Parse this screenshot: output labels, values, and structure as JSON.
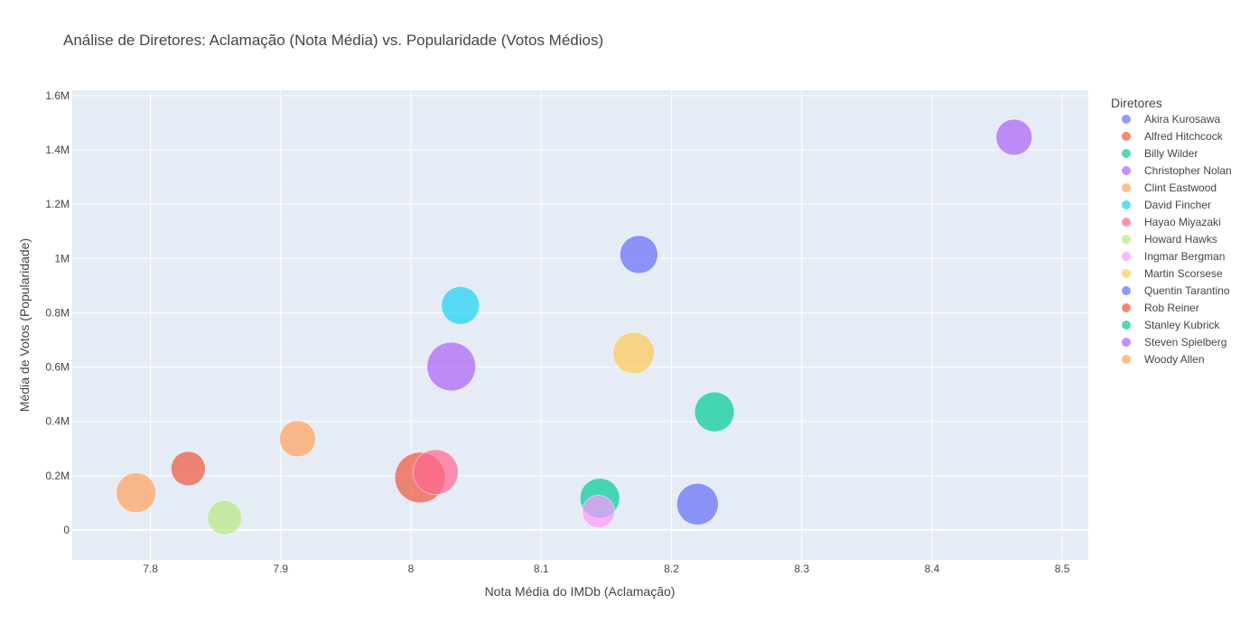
{
  "chart_data": {
    "type": "scatter",
    "title": "Análise de Diretores: Aclamação (Nota Média) vs. Popularidade (Votos Médios)",
    "xlabel": "Nota Média do IMDb (Aclamação)",
    "ylabel": "Média de Votos (Popularidade)",
    "xlim": [
      7.74,
      8.52
    ],
    "ylim": [
      -110000,
      1620000
    ],
    "x_ticks": [
      7.8,
      7.9,
      8,
      8.1,
      8.2,
      8.3,
      8.4,
      8.5
    ],
    "x_tick_labels": [
      "7.8",
      "7.9",
      "8",
      "8.1",
      "8.2",
      "8.3",
      "8.4",
      "8.5"
    ],
    "y_ticks": [
      0,
      200000,
      400000,
      600000,
      800000,
      1000000,
      1200000,
      1400000,
      1600000
    ],
    "y_tick_labels": [
      "0",
      "0.2M",
      "0.4M",
      "0.6M",
      "0.8M",
      "1M",
      "1.2M",
      "1.4M",
      "1.6M"
    ],
    "legend_title": "Diretores",
    "legend_position": "right",
    "grid": true,
    "series": [
      {
        "name": "Akira Kurosawa",
        "color": "#636efa",
        "x": 8.22,
        "y": 95000,
        "size": 23
      },
      {
        "name": "Alfred Hitchcock",
        "color": "#EF553B",
        "x": 8.007,
        "y": 193000,
        "size": 28
      },
      {
        "name": "Billy Wilder",
        "color": "#00cc96",
        "x": 8.145,
        "y": 117000,
        "size": 22
      },
      {
        "name": "Christopher Nolan",
        "color": "#ab63fa",
        "x": 8.463,
        "y": 1447000,
        "size": 20
      },
      {
        "name": "Clint Eastwood",
        "color": "#FFA15A",
        "x": 7.913,
        "y": 336000,
        "size": 20
      },
      {
        "name": "David Fincher",
        "color": "#19d3f3",
        "x": 8.038,
        "y": 827000,
        "size": 21
      },
      {
        "name": "Hayao Miyazaki",
        "color": "#FF6692",
        "x": 8.019,
        "y": 213000,
        "size": 25
      },
      {
        "name": "Howard Hawks",
        "color": "#B6E880",
        "x": 7.857,
        "y": 45000,
        "size": 19
      },
      {
        "name": "Ingmar Bergman",
        "color": "#FF97FF",
        "x": 8.144,
        "y": 68000,
        "size": 18
      },
      {
        "name": "Martin Scorsese",
        "color": "#FECB52",
        "x": 8.171,
        "y": 652000,
        "size": 23
      },
      {
        "name": "Quentin Tarantino",
        "color": "#636efa",
        "x": 8.175,
        "y": 1015000,
        "size": 21
      },
      {
        "name": "Rob Reiner",
        "color": "#EF553B",
        "x": 7.829,
        "y": 226000,
        "size": 19
      },
      {
        "name": "Stanley Kubrick",
        "color": "#00cc96",
        "x": 8.233,
        "y": 435000,
        "size": 22
      },
      {
        "name": "Steven Spielberg",
        "color": "#ab63fa",
        "x": 8.031,
        "y": 602000,
        "size": 27
      },
      {
        "name": "Woody Allen",
        "color": "#FFA15A",
        "x": 7.789,
        "y": 137000,
        "size": 22
      }
    ]
  }
}
